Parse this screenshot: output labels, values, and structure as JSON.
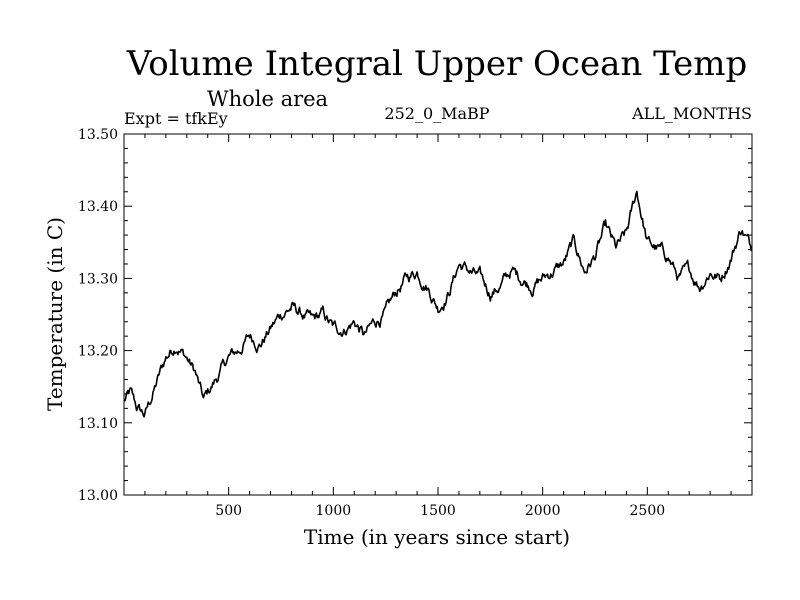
{
  "chart_data": {
    "type": "line",
    "title": "Volume Integral Upper Ocean Temp",
    "subtitle": "Whole area",
    "expt_label": "Expt = tfkEy",
    "center_label": "252_0_MaBP",
    "right_label": "ALL_MONTHS",
    "xlabel": "Time (in years since start)",
    "ylabel": "Temperature (in C)",
    "xlim": [
      0,
      3000
    ],
    "ylim": [
      13.0,
      13.5
    ],
    "xticks": [
      500,
      1000,
      1500,
      2000,
      2500
    ],
    "xtick_labels": [
      "500",
      "1000",
      "1500",
      "2000",
      "2500"
    ],
    "yticks": [
      13.0,
      13.1,
      13.2,
      13.3,
      13.4,
      13.5
    ],
    "ytick_labels": [
      "13.00",
      "13.10",
      "13.20",
      "13.30",
      "13.40",
      "13.50"
    ],
    "grid": false,
    "line_color": "#000000",
    "series": [
      {
        "x": [
          0,
          30,
          60,
          100,
          150,
          200,
          250,
          300,
          340,
          380,
          420,
          460,
          500,
          550,
          600,
          650,
          700,
          750,
          800,
          850,
          900,
          950,
          1000,
          1050,
          1100,
          1150,
          1200,
          1250,
          1300,
          1350,
          1400,
          1450,
          1500,
          1550,
          1600,
          1650,
          1700,
          1750,
          1800,
          1850,
          1900,
          1950,
          2000,
          2050,
          2100,
          2150,
          2200,
          2250,
          2300,
          2350,
          2400,
          2450,
          2500,
          2550,
          2600,
          2650,
          2700,
          2750,
          2800,
          2850,
          2900,
          2950,
          3000
        ],
        "y": [
          13.13,
          13.14,
          13.12,
          13.11,
          13.15,
          13.19,
          13.21,
          13.19,
          13.17,
          13.13,
          13.15,
          13.17,
          13.19,
          13.2,
          13.22,
          13.21,
          13.23,
          13.25,
          13.26,
          13.25,
          13.24,
          13.25,
          13.23,
          13.23,
          13.24,
          13.22,
          13.24,
          13.25,
          13.28,
          13.3,
          13.31,
          13.29,
          13.26,
          13.28,
          13.32,
          13.31,
          13.3,
          13.28,
          13.29,
          13.31,
          13.3,
          13.29,
          13.3,
          13.31,
          13.32,
          13.35,
          13.31,
          13.33,
          13.37,
          13.34,
          13.36,
          13.42,
          13.35,
          13.34,
          13.33,
          13.3,
          13.31,
          13.29,
          13.31,
          13.3,
          13.33,
          13.37,
          13.34
        ]
      }
    ]
  }
}
